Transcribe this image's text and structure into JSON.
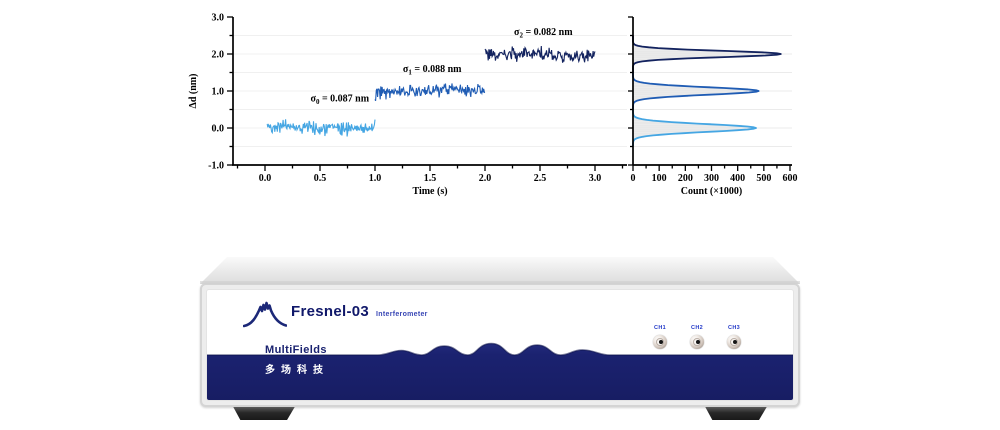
{
  "chart_data": [
    {
      "type": "line",
      "title": "",
      "xlabel": "Time (s)",
      "ylabel": "Δd (nm)",
      "xlim": [
        -0.3,
        3.3
      ],
      "ylim": [
        -1.0,
        3.0
      ],
      "xticks": [
        "0.0",
        "0.5",
        "1.0",
        "1.5",
        "2.0",
        "2.5",
        "3.0"
      ],
      "yticks": [
        "-1.0",
        "0.0",
        "1.0",
        "2.0",
        "3.0"
      ],
      "grid": "faint-horizontal",
      "legend": "none",
      "series": [
        {
          "name": "trace-0nm",
          "color": "#45a6e3",
          "t_start": 0.02,
          "t_end": 1.0,
          "mean": 0.0,
          "sigma": 0.087,
          "drift": [
            0.04,
            -0.03
          ],
          "spike": 0,
          "annotation": {
            "sym": "σ",
            "sub": "0",
            "rest": " = 0.087 nm",
            "x": 0.68,
            "y": 0.72
          }
        },
        {
          "name": "trace-1nm",
          "color": "#1f5cb4",
          "t_start": 1.0,
          "t_end": 2.0,
          "mean": 1.0,
          "sigma": 0.088,
          "drift": [
            -0.06,
            0.05
          ],
          "spike": -0.18,
          "annotation": {
            "sym": "σ",
            "sub": "1",
            "rest": " = 0.088 nm",
            "x": 1.52,
            "y": 1.52
          }
        },
        {
          "name": "trace-2nm",
          "color": "#13235f",
          "t_start": 2.0,
          "t_end": 3.0,
          "mean": 2.0,
          "sigma": 0.082,
          "drift": [
            0.0,
            -0.04
          ],
          "spike": 0.3,
          "annotation": {
            "sym": "σ",
            "sub": "2",
            "rest": " = 0.082 nm",
            "x": 2.53,
            "y": 2.52
          }
        }
      ]
    },
    {
      "type": "area",
      "xlabel": "Count (×1000)",
      "xlim": [
        0,
        610
      ],
      "ylim": [
        -1.0,
        3.0
      ],
      "xticks": [
        "0",
        "100",
        "200",
        "300",
        "400",
        "500",
        "600"
      ],
      "bar_color": "#e8e8e8",
      "peaks": [
        {
          "name": "hist-0nm",
          "center": 0.0,
          "sigma": 0.105,
          "peak_count": 470,
          "color": "#45a6e3"
        },
        {
          "name": "hist-1nm",
          "center": 1.0,
          "sigma": 0.1,
          "peak_count": 480,
          "color": "#1f5cb4"
        },
        {
          "name": "hist-2nm",
          "center": 2.0,
          "sigma": 0.085,
          "peak_count": 565,
          "color": "#13235f"
        }
      ]
    }
  ],
  "device": {
    "model": "Fresnel-03",
    "subtitle": "Interferometer",
    "brand": "MultiFields",
    "brand_cn": "多场科技",
    "channels": [
      "CH1",
      "CH2",
      "CH3"
    ],
    "band_color": "#1b2270",
    "logo_color": "#1c2878",
    "channel_label_color": "#2238c8"
  }
}
